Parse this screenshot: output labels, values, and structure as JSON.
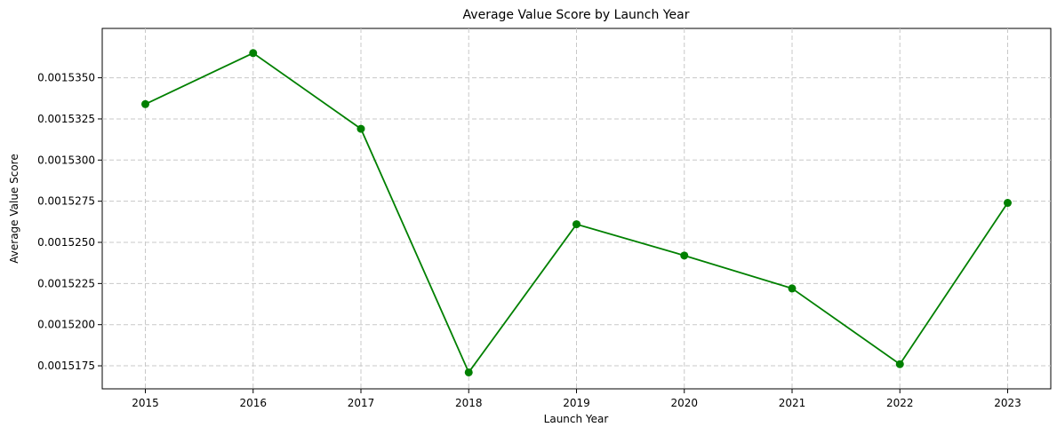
{
  "chart_data": {
    "type": "line",
    "title": "Average Value Score by Launch Year",
    "xlabel": "Launch Year",
    "ylabel": "Average Value Score",
    "x": [
      2015,
      2016,
      2017,
      2018,
      2019,
      2020,
      2021,
      2022,
      2023
    ],
    "x_tick_labels": [
      "2015",
      "2016",
      "2017",
      "2018",
      "2019",
      "2020",
      "2021",
      "2022",
      "2023"
    ],
    "values": [
      0.0015334,
      0.0015365,
      0.0015319,
      0.0015171,
      0.0015261,
      0.0015242,
      0.0015222,
      0.0015176,
      0.0015274
    ],
    "y_ticks": [
      0.0015175,
      0.00152,
      0.0015225,
      0.001525,
      0.0015275,
      0.00153,
      0.0015325,
      0.001535
    ],
    "y_tick_labels": [
      "0.0015175",
      "0.0015200",
      "0.0015225",
      "0.0015250",
      "0.0015275",
      "0.0015300",
      "0.0015325",
      "0.0015350"
    ],
    "xlim": [
      2014.6,
      2023.4
    ],
    "ylim": [
      0.0015161,
      0.001538
    ],
    "grid": true,
    "line_color": "#008000",
    "marker": "circle",
    "grid_color": "#c8c8c8"
  }
}
